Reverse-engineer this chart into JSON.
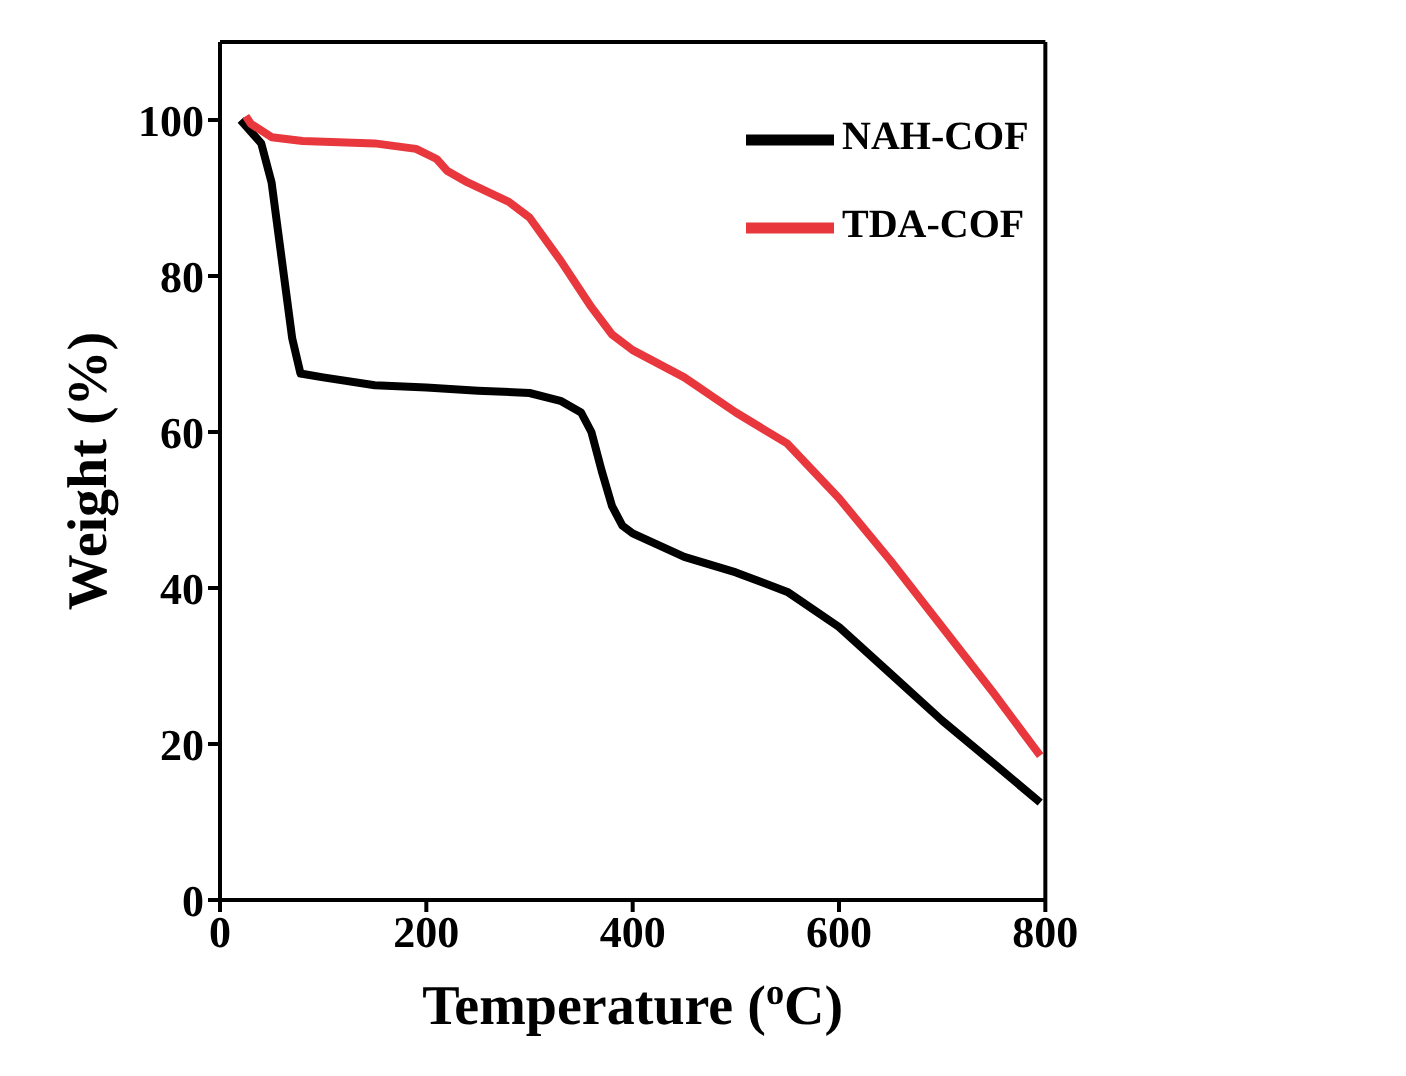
{
  "chart_data": {
    "type": "line",
    "xlabel": "Temperature ($^{o}$C)",
    "ylabel": "Weight (%)",
    "xlim": [
      0,
      800
    ],
    "ylim": [
      0,
      110
    ],
    "xticks": [
      0,
      200,
      400,
      600,
      800
    ],
    "yticks": [
      0,
      20,
      40,
      60,
      80,
      100
    ],
    "legend": "top right",
    "marker": "none",
    "line_style": "solid",
    "series": [
      {
        "name": "NAH-COF",
        "color": "#000000",
        "x": [
          20,
          40,
          50,
          60,
          70,
          78,
          100,
          150,
          200,
          250,
          300,
          330,
          350,
          360,
          370,
          380,
          390,
          400,
          450,
          500,
          550,
          600,
          650,
          700,
          750,
          795
        ],
        "values": [
          100,
          97,
          92,
          82,
          72,
          67.5,
          67,
          66,
          65.7,
          65.3,
          65,
          64,
          62.5,
          60,
          55,
          50.5,
          48,
          47,
          44,
          42,
          39.5,
          35,
          29,
          23,
          17.5,
          12.5
        ]
      },
      {
        "name": "TDA-COF",
        "color": "#e8383d",
        "x": [
          25,
          30,
          50,
          80,
          150,
          190,
          210,
          220,
          240,
          280,
          300,
          330,
          360,
          380,
          400,
          450,
          500,
          550,
          600,
          650,
          700,
          750,
          795
        ],
        "values": [
          100.5,
          99.5,
          97.8,
          97.3,
          97,
          96.3,
          95,
          93.5,
          92,
          89.5,
          87.5,
          82,
          76,
          72.5,
          70.5,
          67,
          62.5,
          58.5,
          51.5,
          43.5,
          35,
          26.5,
          18.5
        ]
      }
    ]
  }
}
